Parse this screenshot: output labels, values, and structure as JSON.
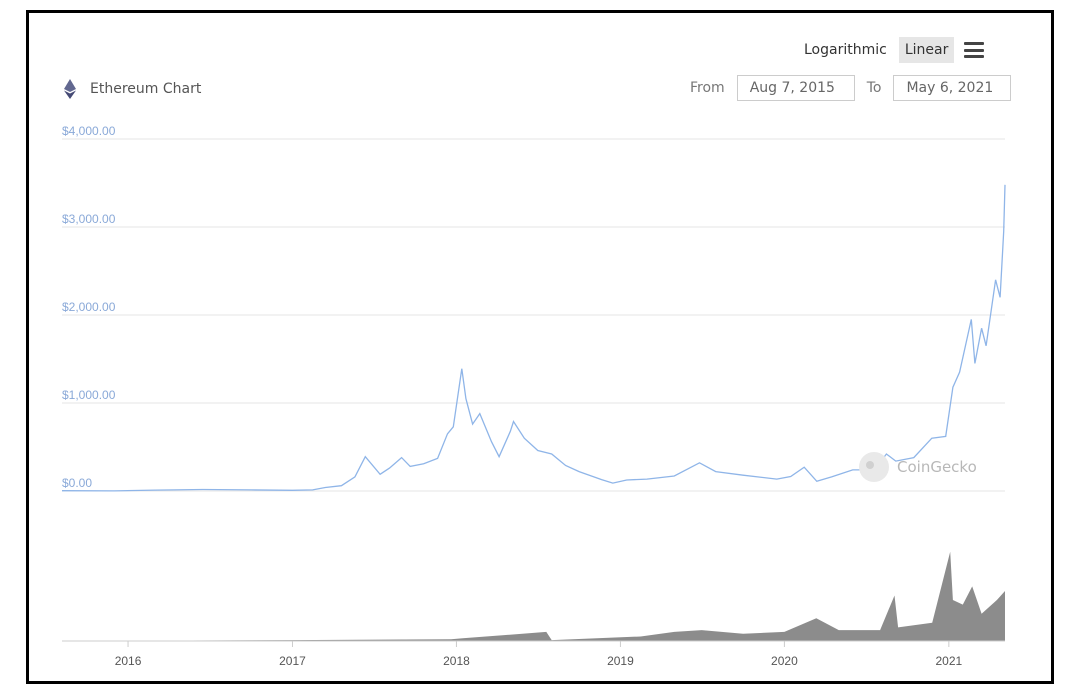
{
  "controls": {
    "log_label": "Logarithmic",
    "linear_label": "Linear",
    "active_scale": "Linear",
    "menu_icon": "menu-icon"
  },
  "title": {
    "text": "Ethereum Chart",
    "icon": "ethereum-icon"
  },
  "range": {
    "from_label": "From",
    "from_value": "Aug 7, 2015",
    "to_label": "To",
    "to_value": "May 6, 2021"
  },
  "watermark": "CoinGecko",
  "colors": {
    "price_line": "#8fb5e8",
    "volume": "#8c8c8c",
    "axis_text": "#8aa9d8",
    "grid": "#e6e6e6"
  },
  "chart_data": {
    "type": "line",
    "title": "Ethereum Chart",
    "xlabel": "",
    "ylabel": "",
    "ylim": [
      0,
      4000
    ],
    "y_ticks": [
      "$0.00",
      "$1,000.00",
      "$2,000.00",
      "$3,000.00",
      "$4,000.00"
    ],
    "x_ticks": [
      "2016",
      "2017",
      "2018",
      "2019",
      "2020",
      "2021"
    ],
    "series": [
      {
        "values_meta": "price in USD by date",
        "points": [
          [
            "2015-08-07",
            3
          ],
          [
            "2015-12-01",
            1
          ],
          [
            "2016-03-01",
            10
          ],
          [
            "2016-06-15",
            17
          ],
          [
            "2016-10-01",
            12
          ],
          [
            "2017-01-01",
            8
          ],
          [
            "2017-02-15",
            13
          ],
          [
            "2017-03-15",
            40
          ],
          [
            "2017-04-20",
            60
          ],
          [
            "2017-05-20",
            160
          ],
          [
            "2017-06-12",
            390
          ],
          [
            "2017-07-15",
            190
          ],
          [
            "2017-08-05",
            260
          ],
          [
            "2017-09-01",
            380
          ],
          [
            "2017-09-20",
            280
          ],
          [
            "2017-10-20",
            310
          ],
          [
            "2017-11-20",
            370
          ],
          [
            "2017-12-12",
            650
          ],
          [
            "2017-12-25",
            730
          ],
          [
            "2018-01-13",
            1390
          ],
          [
            "2018-01-22",
            1050
          ],
          [
            "2018-02-06",
            760
          ],
          [
            "2018-02-22",
            880
          ],
          [
            "2018-03-20",
            560
          ],
          [
            "2018-04-06",
            390
          ],
          [
            "2018-05-01",
            680
          ],
          [
            "2018-05-08",
            790
          ],
          [
            "2018-06-01",
            600
          ],
          [
            "2018-07-01",
            460
          ],
          [
            "2018-08-01",
            420
          ],
          [
            "2018-09-01",
            290
          ],
          [
            "2018-10-01",
            220
          ],
          [
            "2018-11-20",
            130
          ],
          [
            "2018-12-15",
            90
          ],
          [
            "2019-01-15",
            125
          ],
          [
            "2019-03-01",
            135
          ],
          [
            "2019-05-01",
            170
          ],
          [
            "2019-06-26",
            320
          ],
          [
            "2019-08-01",
            220
          ],
          [
            "2019-10-01",
            180
          ],
          [
            "2019-12-15",
            135
          ],
          [
            "2020-01-15",
            165
          ],
          [
            "2020-02-14",
            270
          ],
          [
            "2020-03-13",
            110
          ],
          [
            "2020-04-15",
            160
          ],
          [
            "2020-06-01",
            240
          ],
          [
            "2020-07-20",
            240
          ],
          [
            "2020-08-15",
            420
          ],
          [
            "2020-09-05",
            340
          ],
          [
            "2020-10-15",
            380
          ],
          [
            "2020-11-24",
            600
          ],
          [
            "2020-12-25",
            620
          ],
          [
            "2021-01-10",
            1180
          ],
          [
            "2021-01-25",
            1350
          ],
          [
            "2021-02-20",
            1950
          ],
          [
            "2021-02-28",
            1450
          ],
          [
            "2021-03-15",
            1850
          ],
          [
            "2021-03-25",
            1650
          ],
          [
            "2021-04-15",
            2400
          ],
          [
            "2021-04-25",
            2200
          ],
          [
            "2021-05-03",
            2950
          ],
          [
            "2021-05-06",
            3480
          ]
        ]
      },
      {
        "values_meta": "relative trading volume (0-1)",
        "points": [
          [
            "2015-08-07",
            0.0
          ],
          [
            "2017-01-01",
            0.01
          ],
          [
            "2017-12-20",
            0.02
          ],
          [
            "2018-01-15",
            0.03
          ],
          [
            "2018-07-20",
            0.1
          ],
          [
            "2018-08-01",
            0.01
          ],
          [
            "2019-02-15",
            0.05
          ],
          [
            "2019-05-01",
            0.1
          ],
          [
            "2019-07-01",
            0.12
          ],
          [
            "2019-10-01",
            0.08
          ],
          [
            "2020-01-01",
            0.1
          ],
          [
            "2020-03-12",
            0.25
          ],
          [
            "2020-05-01",
            0.12
          ],
          [
            "2020-08-01",
            0.12
          ],
          [
            "2020-09-02",
            0.5
          ],
          [
            "2020-09-10",
            0.15
          ],
          [
            "2020-11-25",
            0.2
          ],
          [
            "2021-01-04",
            0.98
          ],
          [
            "2021-01-10",
            0.45
          ],
          [
            "2021-02-01",
            0.4
          ],
          [
            "2021-02-22",
            0.6
          ],
          [
            "2021-03-15",
            0.3
          ],
          [
            "2021-04-18",
            0.45
          ],
          [
            "2021-05-06",
            0.55
          ]
        ]
      }
    ]
  }
}
